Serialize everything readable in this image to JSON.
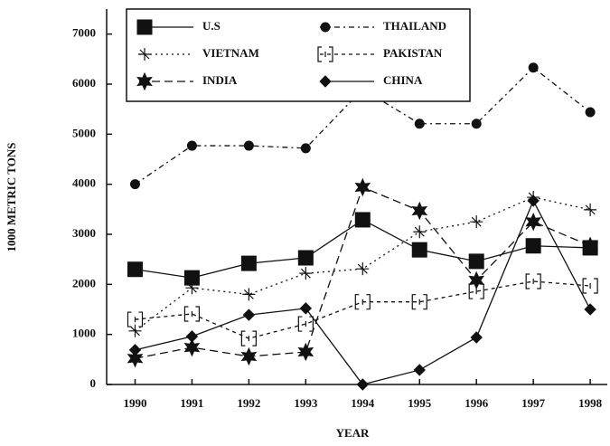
{
  "chart_data": {
    "type": "line",
    "x_label": "YEAR",
    "y_label": "1000 METRIC TONS",
    "x": [
      1990,
      1991,
      1992,
      1993,
      1994,
      1995,
      1996,
      1997,
      1998
    ],
    "xlim": [
      1989.5,
      1998.3
    ],
    "xticks": [
      1990,
      1991,
      1992,
      1993,
      1994,
      1995,
      1996,
      1997,
      1998
    ],
    "ylim": [
      0,
      7500
    ],
    "yticks": [
      0,
      1000,
      2000,
      3000,
      4000,
      5000,
      6000,
      7000
    ],
    "grid": false,
    "legend": "upper left",
    "series": [
      {
        "name": "U.S",
        "color": "#111111",
        "marker": "square",
        "dash": "solid",
        "values": [
          2300,
          2130,
          2420,
          2530,
          3290,
          2690,
          2460,
          2770,
          2730
        ]
      },
      {
        "name": "THAILAND",
        "color": "#111111",
        "marker": "circle",
        "dash": "dashdot",
        "values": [
          4000,
          4770,
          4770,
          4720,
          5900,
          5210,
          5210,
          6330,
          5440
        ]
      },
      {
        "name": "VIETNAM",
        "color": "#111111",
        "marker": "plus",
        "dash": "dotted",
        "values": [
          1070,
          1930,
          1800,
          2220,
          2310,
          3050,
          3250,
          3740,
          3490
        ]
      },
      {
        "name": "PAKISTAN",
        "color": "#111111",
        "marker": "bracket",
        "dash": "shortdash",
        "values": [
          1300,
          1410,
          920,
          1210,
          1650,
          1650,
          1860,
          2060,
          1970
        ]
      },
      {
        "name": "INDIA",
        "color": "#111111",
        "marker": "star",
        "dash": "dashed",
        "values": [
          520,
          740,
          560,
          650,
          3940,
          3470,
          2080,
          3250,
          2770
        ]
      },
      {
        "name": "CHINA",
        "color": "#111111",
        "marker": "diamond",
        "dash": "solid",
        "values": [
          690,
          960,
          1390,
          1520,
          0,
          290,
          940,
          3670,
          1500
        ]
      }
    ]
  }
}
